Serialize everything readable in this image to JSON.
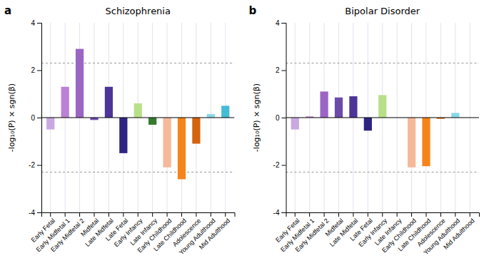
{
  "chart_data": [
    {
      "type": "bar",
      "title": "Schizophrenia",
      "panel_label": "a",
      "ylabel": "-log₁₀(P) × sgn(β)",
      "categories": [
        "Early Fetal",
        "Early Midfetal 1",
        "Early Midfetal 2",
        "Midfetal",
        "Late Midfetal",
        "Late Fetal",
        "Early Infancy",
        "Late Infancy",
        "Early Childhood",
        "Late Childhood",
        "Adolescence",
        "Young Adulthood",
        "Mid Adulthood"
      ],
      "values": [
        -0.5,
        1.3,
        2.9,
        -0.1,
        1.3,
        -1.5,
        0.6,
        -0.3,
        -2.1,
        -2.6,
        -1.1,
        0.15,
        0.5
      ],
      "colors": [
        "#c9a8e0",
        "#bc80d4",
        "#9b65c4",
        "#6b4aaa",
        "#4d3598",
        "#2e2481",
        "#b8e08a",
        "#357a2e",
        "#f5b99a",
        "#f5841a",
        "#d4620e",
        "#8ad8e8",
        "#44bcd4"
      ],
      "hlines": [
        2.3,
        -2.3
      ],
      "ylim": [
        -4,
        4
      ],
      "yticks": [
        -4,
        -2,
        0,
        2,
        4
      ],
      "grid": true
    },
    {
      "type": "bar",
      "title": "Bipolar Disorder",
      "panel_label": "b",
      "ylabel": "-log₁₀(P) × sgn(β)",
      "categories": [
        "Early Fetal",
        "Early Midfetal 1",
        "Early Midfetal 2",
        "Midfetal",
        "Late Midfetal",
        "Late Fetal",
        "Early Infancy",
        "Late Infancy",
        "Early Childhood",
        "Late Childhood",
        "Adolescence",
        "Young Adulthood",
        "Mid Adulthood"
      ],
      "values": [
        -0.5,
        0.05,
        1.1,
        0.85,
        0.9,
        -0.55,
        0.95,
        0.0,
        -2.1,
        -2.05,
        -0.05,
        0.2,
        0.0
      ],
      "colors": [
        "#c9a8e0",
        "#bc80d4",
        "#9b65c4",
        "#6b4aaa",
        "#4d3598",
        "#2e2481",
        "#b8e08a",
        "#357a2e",
        "#f5b99a",
        "#f5841a",
        "#d4620e",
        "#8ad8e8",
        "#44bcd4"
      ],
      "hlines": [
        2.3,
        -2.3
      ],
      "ylim": [
        -4,
        4
      ],
      "yticks": [
        -4,
        -2,
        0,
        2,
        4
      ],
      "grid": true
    }
  ]
}
